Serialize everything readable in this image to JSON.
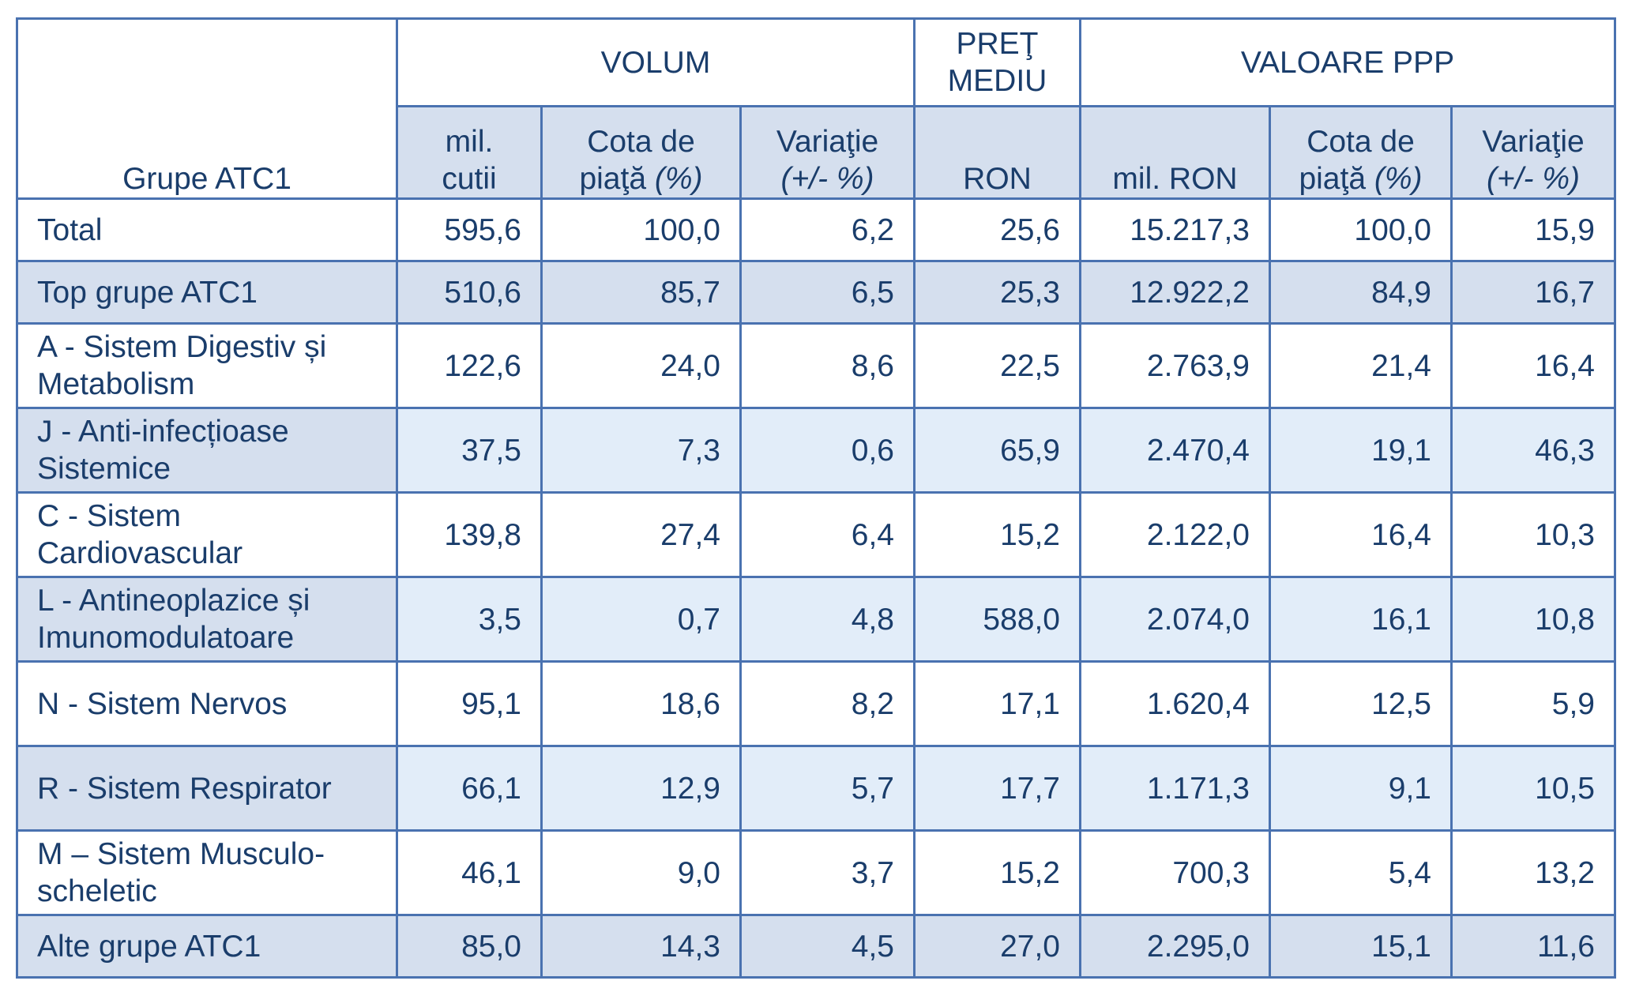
{
  "header": {
    "first_col": "Grupe ATC1",
    "groups": {
      "volum": "VOLUM",
      "pret": "PREŢ MEDIU",
      "valoare": "VALOARE PPP"
    },
    "sub": {
      "mil_cutii": "mil. cutii",
      "cota_vol_a": "Cota de piaţă",
      "cota_vol_b": "(%)",
      "var_vol_a": "Variaţie",
      "var_vol_b": "(+/- %)",
      "ron": "RON",
      "mil_ron": "mil. RON",
      "cota_val_a": "Cota de piaţă",
      "cota_val_b": "(%)",
      "var_val_a": "Variaţie",
      "var_val_b": "(+/- %)"
    }
  },
  "rows": [
    {
      "label": "Total",
      "vol": "595,6",
      "cota_vol": "100,0",
      "var_vol": "6,2",
      "pret": "25,6",
      "val": "15.217,3",
      "cota_val": "100,0",
      "var_val": "15,9"
    },
    {
      "label": "Top grupe ATC1",
      "vol": "510,6",
      "cota_vol": "85,7",
      "var_vol": "6,5",
      "pret": "25,3",
      "val": "12.922,2",
      "cota_val": "84,9",
      "var_val": "16,7"
    },
    {
      "label": "A - Sistem Digestiv și Metabolism",
      "vol": "122,6",
      "cota_vol": "24,0",
      "var_vol": "8,6",
      "pret": "22,5",
      "val": "2.763,9",
      "cota_val": "21,4",
      "var_val": "16,4"
    },
    {
      "label": "J - Anti-infecțioase Sistemice",
      "vol": "37,5",
      "cota_vol": "7,3",
      "var_vol": "0,6",
      "pret": "65,9",
      "val": "2.470,4",
      "cota_val": "19,1",
      "var_val": "46,3"
    },
    {
      "label": "C - Sistem Cardiovascular",
      "vol": "139,8",
      "cota_vol": "27,4",
      "var_vol": "6,4",
      "pret": "15,2",
      "val": "2.122,0",
      "cota_val": "16,4",
      "var_val": "10,3"
    },
    {
      "label": "L - Antineoplazice și Imunomodulatoare",
      "vol": "3,5",
      "cota_vol": "0,7",
      "var_vol": "4,8",
      "pret": "588,0",
      "val": "2.074,0",
      "cota_val": "16,1",
      "var_val": "10,8"
    },
    {
      "label": "N - Sistem Nervos",
      "vol": "95,1",
      "cota_vol": "18,6",
      "var_vol": "8,2",
      "pret": "17,1",
      "val": "1.620,4",
      "cota_val": "12,5",
      "var_val": "5,9"
    },
    {
      "label": "R - Sistem Respirator",
      "vol": "66,1",
      "cota_vol": "12,9",
      "var_vol": "5,7",
      "pret": "17,7",
      "val": "1.171,3",
      "cota_val": "9,1",
      "var_val": "10,5"
    },
    {
      "label": "M – Sistem Musculo-scheletic",
      "vol": "46,1",
      "cota_vol": "9,0",
      "var_vol": "3,7",
      "pret": "15,2",
      "val": "700,3",
      "cota_val": "5,4",
      "var_val": "13,2"
    },
    {
      "label": "Alte grupe ATC1",
      "vol": "85,0",
      "cota_vol": "14,3",
      "var_vol": "4,5",
      "pret": "27,0",
      "val": "2.295,0",
      "cota_val": "15,1",
      "var_val": "11,6"
    }
  ]
}
